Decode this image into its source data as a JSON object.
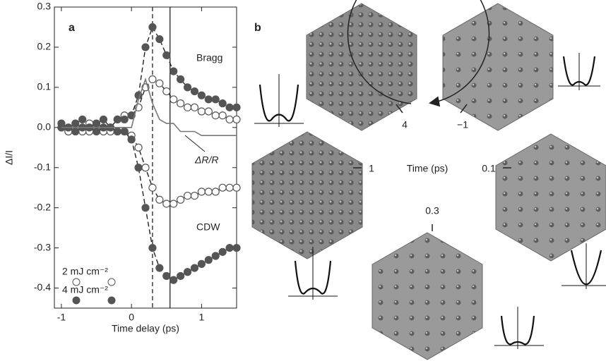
{
  "chart_data": {
    "type": "scatter",
    "panel_label": "a",
    "x_label": "Time delay (ps)",
    "y_label": "ΔI/I",
    "x": [
      -1.0,
      -0.9,
      -0.8,
      -0.7,
      -0.6,
      -0.5,
      -0.4,
      -0.3,
      -0.2,
      -0.1,
      0.0,
      0.1,
      0.2,
      0.3,
      0.4,
      0.5,
      0.6,
      0.7,
      0.8,
      0.9,
      1.0,
      1.1,
      1.2,
      1.3,
      1.4,
      1.5
    ],
    "series": [
      {
        "name": "2 mJ cm⁻²",
        "marker": "open",
        "color": "#555",
        "bragg_values": [
          0.0,
          -0.01,
          0.0,
          -0.01,
          0.01,
          0.0,
          -0.01,
          0.0,
          0.02,
          0.03,
          0.03,
          0.05,
          0.1,
          0.12,
          0.11,
          0.09,
          0.07,
          0.06,
          0.05,
          0.05,
          0.04,
          0.04,
          0.03,
          0.03,
          0.02,
          0.02
        ],
        "cdw_values": [
          0.0,
          -0.01,
          0.0,
          0.0,
          -0.01,
          0.0,
          0.0,
          -0.01,
          -0.01,
          -0.01,
          -0.02,
          -0.05,
          -0.1,
          -0.15,
          -0.18,
          -0.19,
          -0.19,
          -0.18,
          -0.17,
          -0.17,
          -0.16,
          -0.16,
          -0.16,
          -0.15,
          -0.15,
          -0.15
        ]
      },
      {
        "name": "4 mJ cm⁻²",
        "marker": "filled",
        "color": "#555",
        "bragg_values": [
          0.01,
          0.0,
          0.01,
          0.02,
          0.0,
          0.01,
          0.02,
          0.0,
          0.02,
          0.02,
          0.03,
          0.08,
          0.2,
          0.25,
          0.22,
          0.18,
          0.14,
          0.12,
          0.1,
          0.09,
          0.08,
          0.07,
          0.07,
          0.06,
          0.05,
          0.05
        ],
        "cdw_values": [
          0.0,
          0.0,
          -0.01,
          0.0,
          0.0,
          -0.01,
          0.0,
          0.0,
          -0.01,
          -0.01,
          -0.03,
          -0.1,
          -0.2,
          -0.3,
          -0.35,
          -0.37,
          -0.38,
          -0.37,
          -0.36,
          -0.35,
          -0.34,
          -0.33,
          -0.32,
          -0.31,
          -0.3,
          -0.3
        ]
      }
    ],
    "reflectivity": {
      "label": "ΔR/R",
      "color": "#777",
      "values": [
        0.0,
        0.0,
        0.0,
        0.0,
        0.0,
        0.0,
        0.0,
        0.0,
        0.0,
        0.0,
        0.0,
        0.07,
        0.12,
        0.06,
        0.02,
        0.01,
        0.01,
        -0.01,
        -0.01,
        -0.01,
        -0.02,
        -0.02,
        -0.02,
        -0.02,
        -0.02,
        -0.02
      ]
    },
    "annotations": {
      "bragg": "Bragg",
      "cdw": "CDW"
    },
    "vlines": [
      {
        "x": 0.3,
        "style": "dashed"
      },
      {
        "x": 0.55,
        "style": "solid"
      }
    ],
    "xlim": [
      -1.1,
      1.5
    ],
    "xticks": [
      -1,
      0,
      1
    ],
    "ylim": [
      -0.45,
      0.3
    ],
    "yticks": [
      -0.4,
      -0.3,
      -0.2,
      -0.1,
      {
        "value": 0,
        "label": "0.0"
      },
      0.1,
      0.2,
      0.3
    ]
  },
  "diagram": {
    "panel_label": "b",
    "center_label": "Time (ps)",
    "clock_labels": [
      "4",
      "−1",
      "1",
      "0.1",
      "0.3"
    ]
  }
}
